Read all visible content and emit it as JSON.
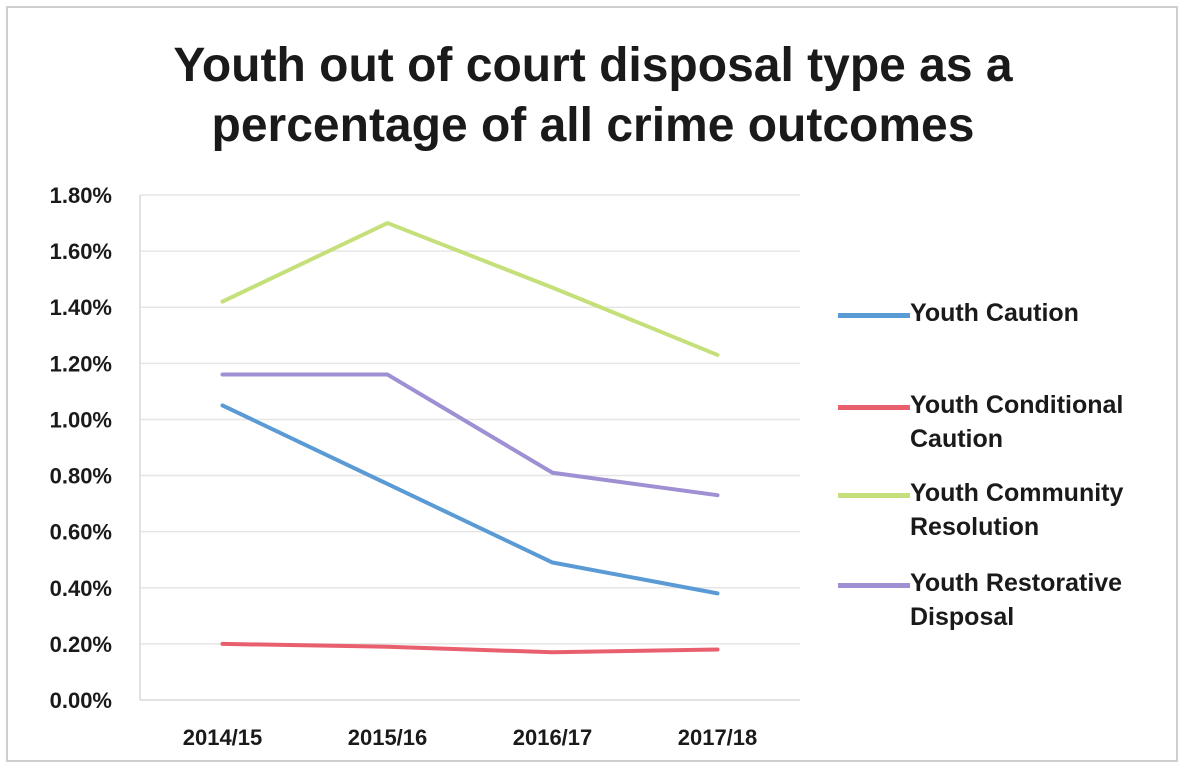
{
  "chart_data": {
    "type": "line",
    "title_lines": [
      "Youth out of court disposal type as a",
      "percentage of all crime outcomes"
    ],
    "categories": [
      "2014/15",
      "2015/16",
      "2016/17",
      "2017/18"
    ],
    "y_ticks": [
      "0.00%",
      "0.20%",
      "0.40%",
      "0.60%",
      "0.80%",
      "1.00%",
      "1.20%",
      "1.40%",
      "1.60%",
      "1.80%"
    ],
    "ylim": [
      0,
      1.8
    ],
    "y_unit": "%",
    "grid": true,
    "legend_position": "right",
    "series": [
      {
        "name": "Youth Caution",
        "color": "#5b9bd5",
        "values": [
          1.05,
          0.77,
          0.49,
          0.38
        ]
      },
      {
        "name": "Youth Conditional Caution",
        "color": "#e8606e",
        "values": [
          0.2,
          0.19,
          0.17,
          0.18
        ]
      },
      {
        "name": "Youth Community Resolution",
        "color": "#c5e07a",
        "values": [
          1.42,
          1.7,
          1.47,
          1.23
        ]
      },
      {
        "name": "Youth Restorative Disposal",
        "color": "#9f8fd3",
        "values": [
          1.16,
          1.16,
          0.81,
          0.73
        ]
      }
    ]
  }
}
